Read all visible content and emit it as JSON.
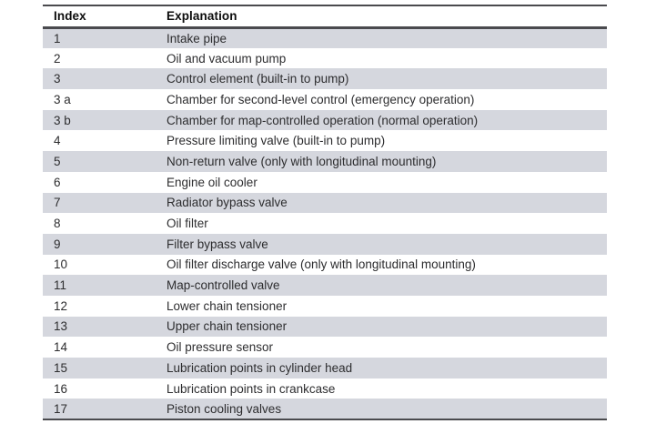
{
  "table": {
    "columns": [
      "Index",
      "Explanation"
    ],
    "rows": [
      {
        "index": "1",
        "explanation": "Intake pipe"
      },
      {
        "index": "2",
        "explanation": "Oil and vacuum pump"
      },
      {
        "index": "3",
        "explanation": "Control element (built-in to pump)"
      },
      {
        "index": "3 a",
        "explanation": "Chamber for second-level control (emergency operation)"
      },
      {
        "index": "3 b",
        "explanation": "Chamber for map-controlled operation (normal operation)"
      },
      {
        "index": "4",
        "explanation": "Pressure limiting valve (built-in to pump)"
      },
      {
        "index": "5",
        "explanation": "Non-return valve (only with longitudinal mounting)"
      },
      {
        "index": "6",
        "explanation": "Engine oil cooler"
      },
      {
        "index": "7",
        "explanation": "Radiator bypass valve"
      },
      {
        "index": "8",
        "explanation": "Oil filter"
      },
      {
        "index": "9",
        "explanation": "Filter bypass valve"
      },
      {
        "index": "10",
        "explanation": "Oil filter discharge valve (only with longitudinal mounting)"
      },
      {
        "index": "11",
        "explanation": "Map-controlled valve"
      },
      {
        "index": "12",
        "explanation": "Lower chain tensioner"
      },
      {
        "index": "13",
        "explanation": "Upper chain tensioner"
      },
      {
        "index": "14",
        "explanation": "Oil pressure sensor"
      },
      {
        "index": "15",
        "explanation": "Lubrication points in cylinder head"
      },
      {
        "index": "16",
        "explanation": "Lubrication points in crankcase"
      },
      {
        "index": "17",
        "explanation": "Piston cooling valves"
      }
    ]
  },
  "colors": {
    "row_shade": "#d5d7de",
    "rule": "#4a4a4e",
    "header_text": "#0d0d0d",
    "body_text": "#2d2d2f",
    "background": "#ffffff"
  }
}
